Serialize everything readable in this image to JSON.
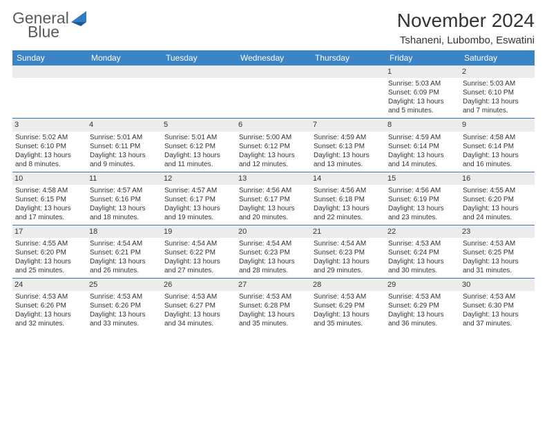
{
  "logo": {
    "word1": "General",
    "word2": "Blue"
  },
  "title": "November 2024",
  "location": "Tshaneni, Lubombo, Eswatini",
  "weekdays": [
    "Sunday",
    "Monday",
    "Tuesday",
    "Wednesday",
    "Thursday",
    "Friday",
    "Saturday"
  ],
  "colors": {
    "header_bar": "#3b85c6",
    "week_divider": "#2f7bc4",
    "daynum_bg": "#ececec",
    "logo_gray": "#5a5a5a",
    "logo_blue": "#2f7bc4",
    "text": "#333333",
    "background": "#ffffff"
  },
  "label_prefix": {
    "sunrise": "Sunrise: ",
    "sunset": "Sunset: ",
    "daylight": "Daylight: "
  },
  "weeks": [
    [
      {
        "empty": true
      },
      {
        "empty": true
      },
      {
        "empty": true
      },
      {
        "empty": true
      },
      {
        "empty": true
      },
      {
        "num": "1",
        "sunrise": "5:03 AM",
        "sunset": "6:09 PM",
        "daylight": "13 hours and 5 minutes."
      },
      {
        "num": "2",
        "sunrise": "5:03 AM",
        "sunset": "6:10 PM",
        "daylight": "13 hours and 7 minutes."
      }
    ],
    [
      {
        "num": "3",
        "sunrise": "5:02 AM",
        "sunset": "6:10 PM",
        "daylight": "13 hours and 8 minutes."
      },
      {
        "num": "4",
        "sunrise": "5:01 AM",
        "sunset": "6:11 PM",
        "daylight": "13 hours and 9 minutes."
      },
      {
        "num": "5",
        "sunrise": "5:01 AM",
        "sunset": "6:12 PM",
        "daylight": "13 hours and 11 minutes."
      },
      {
        "num": "6",
        "sunrise": "5:00 AM",
        "sunset": "6:12 PM",
        "daylight": "13 hours and 12 minutes."
      },
      {
        "num": "7",
        "sunrise": "4:59 AM",
        "sunset": "6:13 PM",
        "daylight": "13 hours and 13 minutes."
      },
      {
        "num": "8",
        "sunrise": "4:59 AM",
        "sunset": "6:14 PM",
        "daylight": "13 hours and 14 minutes."
      },
      {
        "num": "9",
        "sunrise": "4:58 AM",
        "sunset": "6:14 PM",
        "daylight": "13 hours and 16 minutes."
      }
    ],
    [
      {
        "num": "10",
        "sunrise": "4:58 AM",
        "sunset": "6:15 PM",
        "daylight": "13 hours and 17 minutes."
      },
      {
        "num": "11",
        "sunrise": "4:57 AM",
        "sunset": "6:16 PM",
        "daylight": "13 hours and 18 minutes."
      },
      {
        "num": "12",
        "sunrise": "4:57 AM",
        "sunset": "6:17 PM",
        "daylight": "13 hours and 19 minutes."
      },
      {
        "num": "13",
        "sunrise": "4:56 AM",
        "sunset": "6:17 PM",
        "daylight": "13 hours and 20 minutes."
      },
      {
        "num": "14",
        "sunrise": "4:56 AM",
        "sunset": "6:18 PM",
        "daylight": "13 hours and 22 minutes."
      },
      {
        "num": "15",
        "sunrise": "4:56 AM",
        "sunset": "6:19 PM",
        "daylight": "13 hours and 23 minutes."
      },
      {
        "num": "16",
        "sunrise": "4:55 AM",
        "sunset": "6:20 PM",
        "daylight": "13 hours and 24 minutes."
      }
    ],
    [
      {
        "num": "17",
        "sunrise": "4:55 AM",
        "sunset": "6:20 PM",
        "daylight": "13 hours and 25 minutes."
      },
      {
        "num": "18",
        "sunrise": "4:54 AM",
        "sunset": "6:21 PM",
        "daylight": "13 hours and 26 minutes."
      },
      {
        "num": "19",
        "sunrise": "4:54 AM",
        "sunset": "6:22 PM",
        "daylight": "13 hours and 27 minutes."
      },
      {
        "num": "20",
        "sunrise": "4:54 AM",
        "sunset": "6:23 PM",
        "daylight": "13 hours and 28 minutes."
      },
      {
        "num": "21",
        "sunrise": "4:54 AM",
        "sunset": "6:23 PM",
        "daylight": "13 hours and 29 minutes."
      },
      {
        "num": "22",
        "sunrise": "4:53 AM",
        "sunset": "6:24 PM",
        "daylight": "13 hours and 30 minutes."
      },
      {
        "num": "23",
        "sunrise": "4:53 AM",
        "sunset": "6:25 PM",
        "daylight": "13 hours and 31 minutes."
      }
    ],
    [
      {
        "num": "24",
        "sunrise": "4:53 AM",
        "sunset": "6:26 PM",
        "daylight": "13 hours and 32 minutes."
      },
      {
        "num": "25",
        "sunrise": "4:53 AM",
        "sunset": "6:26 PM",
        "daylight": "13 hours and 33 minutes."
      },
      {
        "num": "26",
        "sunrise": "4:53 AM",
        "sunset": "6:27 PM",
        "daylight": "13 hours and 34 minutes."
      },
      {
        "num": "27",
        "sunrise": "4:53 AM",
        "sunset": "6:28 PM",
        "daylight": "13 hours and 35 minutes."
      },
      {
        "num": "28",
        "sunrise": "4:53 AM",
        "sunset": "6:29 PM",
        "daylight": "13 hours and 35 minutes."
      },
      {
        "num": "29",
        "sunrise": "4:53 AM",
        "sunset": "6:29 PM",
        "daylight": "13 hours and 36 minutes."
      },
      {
        "num": "30",
        "sunrise": "4:53 AM",
        "sunset": "6:30 PM",
        "daylight": "13 hours and 37 minutes."
      }
    ]
  ]
}
